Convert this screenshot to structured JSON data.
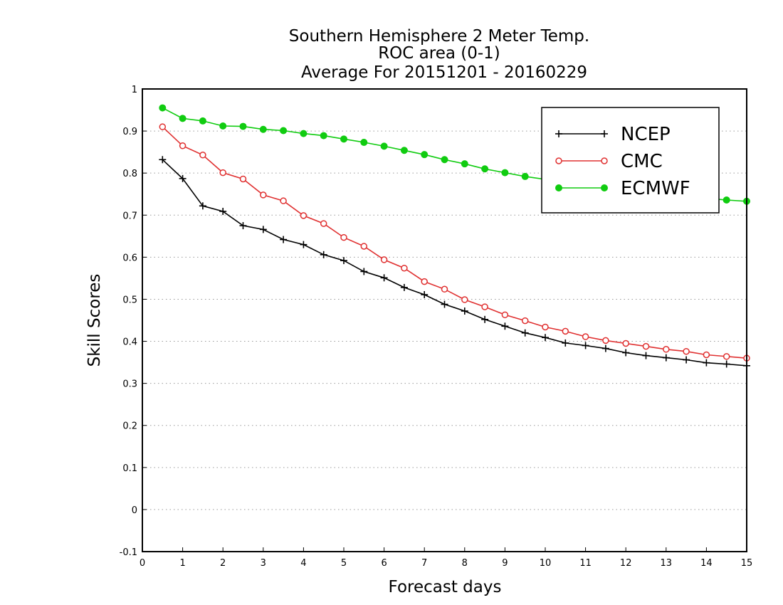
{
  "chart_data": {
    "type": "line",
    "title_lines": [
      "Southern Hemisphere 2 Meter Temp.",
      "ROC area (0-1)",
      "Average For 20151201 - 20160229"
    ],
    "xlabel": "Forecast days",
    "ylabel": "Skill Scores",
    "xlim": [
      0,
      15
    ],
    "ylim": [
      -0.1,
      1
    ],
    "x_ticks": [
      0,
      1,
      2,
      3,
      4,
      5,
      6,
      7,
      8,
      9,
      10,
      11,
      12,
      13,
      14,
      15
    ],
    "x_tick_labels": [
      "0",
      "1",
      "2",
      "3",
      "4",
      "5",
      "6",
      "7",
      "8",
      "9",
      "10",
      "11",
      "12",
      "13",
      "14",
      "15"
    ],
    "y_ticks": [
      -0.1,
      0,
      0.1,
      0.2,
      0.3,
      0.4,
      0.5,
      0.6,
      0.7,
      0.8,
      0.9,
      1
    ],
    "y_tick_labels": [
      "-0.1",
      "0",
      "0.1",
      "0.2",
      "0.3",
      "0.4",
      "0.5",
      "0.6",
      "0.7",
      "0.8",
      "0.9",
      "1"
    ],
    "grid": "horizontal-dotted",
    "legend_position": "top-right",
    "x": [
      0.5,
      1,
      1.5,
      2,
      2.5,
      3,
      3.5,
      4,
      4.5,
      5,
      5.5,
      6,
      6.5,
      7,
      7.5,
      8,
      8.5,
      9,
      9.5,
      10,
      10.5,
      11,
      11.5,
      12,
      12.5,
      13,
      13.5,
      14,
      14.5,
      15
    ],
    "series": [
      {
        "name": "NCEP",
        "color": "#000000",
        "marker": "plus",
        "values": [
          0.832,
          0.787,
          0.722,
          0.709,
          0.675,
          0.666,
          0.642,
          0.63,
          0.606,
          0.592,
          0.566,
          0.551,
          0.528,
          0.511,
          0.488,
          0.472,
          0.452,
          0.436,
          0.42,
          0.409,
          0.396,
          0.39,
          0.383,
          0.373,
          0.366,
          0.361,
          0.356,
          0.349,
          0.346,
          0.342
        ]
      },
      {
        "name": "CMC",
        "color": "#e03030",
        "marker": "open-circle",
        "values": [
          0.91,
          0.865,
          0.843,
          0.801,
          0.786,
          0.748,
          0.734,
          0.699,
          0.68,
          0.647,
          0.626,
          0.594,
          0.574,
          0.542,
          0.524,
          0.499,
          0.482,
          0.463,
          0.449,
          0.434,
          0.424,
          0.411,
          0.402,
          0.395,
          0.388,
          0.381,
          0.376,
          0.368,
          0.364,
          0.36
        ]
      },
      {
        "name": "ECMWF",
        "color": "#10cc10",
        "marker": "filled-circle",
        "values": [
          0.955,
          0.93,
          0.924,
          0.912,
          0.911,
          0.904,
          0.901,
          0.894,
          0.889,
          0.881,
          0.873,
          0.864,
          0.854,
          0.844,
          0.832,
          0.822,
          0.81,
          0.801,
          0.792,
          0.785,
          0.776,
          0.767,
          0.758,
          0.75,
          0.755,
          0.748,
          0.744,
          0.74,
          0.736,
          0.733
        ]
      }
    ]
  }
}
